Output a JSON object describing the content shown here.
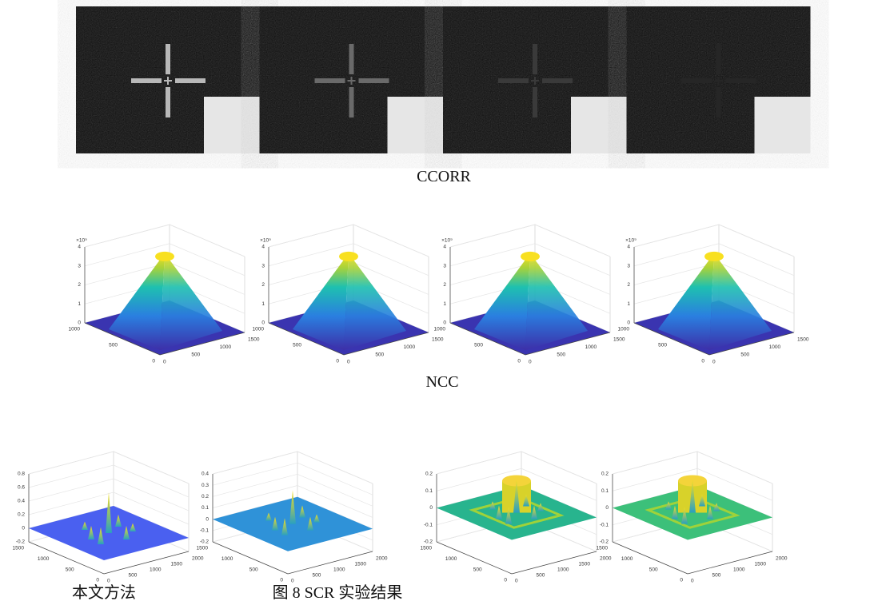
{
  "ccorr": {
    "caption": "CCORR"
  },
  "ncc": {
    "caption": "NCC",
    "plots": [
      {
        "exponent": "×10⁹",
        "zticks": [
          "0",
          "1",
          "2",
          "3",
          "4"
        ],
        "yticks": [
          "0",
          "500",
          "1000"
        ],
        "xticks": [
          "0",
          "500",
          "1000",
          "1500"
        ]
      },
      {
        "exponent": "×10⁹",
        "zticks": [
          "0",
          "1",
          "2",
          "3",
          "4"
        ],
        "yticks": [
          "0",
          "500",
          "1000"
        ],
        "xticks": [
          "0",
          "500",
          "1000",
          "1500"
        ]
      },
      {
        "exponent": "×10⁹",
        "zticks": [
          "0",
          "1",
          "2",
          "3",
          "4"
        ],
        "yticks": [
          "0",
          "500",
          "1000"
        ],
        "xticks": [
          "0",
          "500",
          "1000",
          "1500"
        ]
      },
      {
        "exponent": "×10⁹",
        "zticks": [
          "0",
          "1",
          "2",
          "3",
          "4"
        ],
        "yticks": [
          "0",
          "500",
          "1000"
        ],
        "xticks": [
          "0",
          "500",
          "1000",
          "1500"
        ]
      }
    ]
  },
  "scr": {
    "method_label": "本文方法",
    "figure_caption": "图 8 SCR 实验结果",
    "plots": [
      {
        "zticks": [
          "-0.2",
          "0",
          "0.2",
          "0.4",
          "0.6",
          "0.8"
        ],
        "yticks": [
          "0",
          "500",
          "1000",
          "1500"
        ],
        "xticks": [
          "0",
          "500",
          "1000",
          "1500",
          "2000"
        ]
      },
      {
        "zticks": [
          "-0.2",
          "-0.1",
          "0",
          "0.1",
          "0.2",
          "0.3",
          "0.4"
        ],
        "yticks": [
          "0",
          "500",
          "1000",
          "1500"
        ],
        "xticks": [
          "0",
          "500",
          "1000",
          "1500",
          "2000"
        ]
      },
      {
        "zticks": [
          "-0.2",
          "-0.1",
          "0",
          "0.1",
          "0.2"
        ],
        "yticks": [
          "0",
          "500",
          "1000",
          "1500"
        ],
        "xticks": [
          "0",
          "500",
          "1000",
          "1500",
          "2000"
        ]
      },
      {
        "zticks": [
          "-0.2",
          "-0.1",
          "0",
          "0.1",
          "0.2"
        ],
        "yticks": [
          "0",
          "500",
          "1000",
          "1500"
        ],
        "xticks": [
          "0",
          "500",
          "1000",
          "1500",
          "2000"
        ]
      }
    ]
  }
}
